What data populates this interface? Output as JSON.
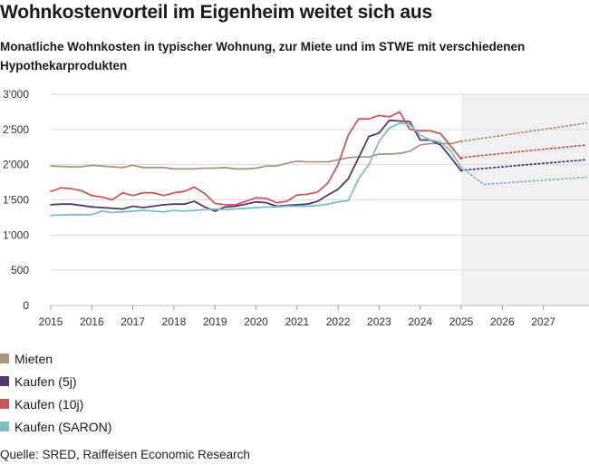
{
  "title": "Wohnkostenvorteil im Eigenheim weitet sich aus",
  "subtitle": "Monatliche Wohnkosten in typischer Wohnung, zur Miete und im STWE mit verschiedenen Hypothekarprodukten",
  "source": "Quelle: SRED, Raiffeisen Economic Research",
  "chart_data": {
    "type": "line",
    "xlim": [
      2015,
      2028.05
    ],
    "ylim": [
      0,
      3000
    ],
    "yticks": [
      0,
      500,
      1000,
      1500,
      2000,
      2500,
      3000
    ],
    "ytick_labels": [
      "0",
      "500",
      "1'000",
      "1'500",
      "2'000",
      "2'500",
      "3'000"
    ],
    "xticks": [
      "2015",
      "2016",
      "2017",
      "2018",
      "2019",
      "2020",
      "2021",
      "2022",
      "2023",
      "2024",
      "2025",
      "2026",
      "2027"
    ],
    "forecast_start": 2025,
    "grid": true,
    "legend_position": "bottom-left",
    "series": [
      {
        "name": "Mieten",
        "color": "#a89680",
        "x": [
          2015,
          2015.5,
          2015.75,
          2016,
          2016.25,
          2016.5,
          2016.75,
          2017,
          2017.25,
          2017.5,
          2017.75,
          2018,
          2018.25,
          2018.5,
          2018.75,
          2019,
          2019.25,
          2019.5,
          2019.75,
          2020,
          2020.25,
          2020.5,
          2020.75,
          2021,
          2021.25,
          2021.5,
          2021.75,
          2022,
          2022.25,
          2022.5,
          2022.75,
          2023,
          2023.25,
          2023.5,
          2023.75,
          2024,
          2024.25,
          2024.5,
          2024.75,
          2025
        ],
        "y": [
          1980,
          1970,
          1970,
          1990,
          1980,
          1970,
          1960,
          1990,
          1960,
          1960,
          1960,
          1940,
          1940,
          1940,
          1950,
          1950,
          1960,
          1940,
          1940,
          1950,
          1980,
          1980,
          2020,
          2050,
          2040,
          2040,
          2040,
          2070,
          2100,
          2110,
          2110,
          2150,
          2150,
          2160,
          2190,
          2280,
          2300,
          2300,
          2300,
          2330
        ],
        "forecast_x": [
          2025,
          2028.05
        ],
        "forecast_y": [
          2330,
          2590
        ]
      },
      {
        "name": "Kaufen (5j)",
        "color": "#4e3a6e",
        "x": [
          2015,
          2015.25,
          2015.5,
          2015.75,
          2016,
          2016.25,
          2016.5,
          2016.75,
          2017,
          2017.25,
          2017.5,
          2017.75,
          2018,
          2018.25,
          2018.5,
          2018.75,
          2019,
          2019.25,
          2019.5,
          2019.75,
          2020,
          2020.25,
          2020.5,
          2020.75,
          2021,
          2021.25,
          2021.5,
          2021.75,
          2022,
          2022.25,
          2022.5,
          2022.75,
          2023,
          2023.25,
          2023.5,
          2023.75,
          2024,
          2024.25,
          2024.5,
          2024.75,
          2025
        ],
        "y": [
          1430,
          1440,
          1440,
          1420,
          1400,
          1390,
          1380,
          1370,
          1410,
          1390,
          1410,
          1430,
          1440,
          1440,
          1480,
          1400,
          1340,
          1400,
          1410,
          1440,
          1470,
          1460,
          1410,
          1420,
          1430,
          1440,
          1480,
          1570,
          1650,
          1800,
          2100,
          2400,
          2450,
          2630,
          2620,
          2610,
          2350,
          2350,
          2280,
          2100,
          1910
        ],
        "forecast_x": [
          2025,
          2028.05
        ],
        "forecast_y": [
          1920,
          2070
        ]
      },
      {
        "name": "Kaufen (10j)",
        "color": "#c95a5a",
        "x": [
          2015,
          2015.25,
          2015.5,
          2015.75,
          2016,
          2016.25,
          2016.5,
          2016.75,
          2017,
          2017.25,
          2017.5,
          2017.75,
          2018,
          2018.25,
          2018.5,
          2018.75,
          2019,
          2019.25,
          2019.5,
          2019.75,
          2020,
          2020.25,
          2020.5,
          2020.75,
          2021,
          2021.25,
          2021.5,
          2021.75,
          2022,
          2022.25,
          2022.5,
          2022.75,
          2023,
          2023.25,
          2023.5,
          2023.75,
          2024,
          2024.25,
          2024.5,
          2024.75,
          2025
        ],
        "y": [
          1620,
          1670,
          1660,
          1630,
          1560,
          1540,
          1500,
          1600,
          1560,
          1600,
          1600,
          1560,
          1600,
          1620,
          1680,
          1590,
          1450,
          1430,
          1430,
          1480,
          1530,
          1520,
          1460,
          1480,
          1570,
          1580,
          1610,
          1740,
          2000,
          2420,
          2650,
          2650,
          2700,
          2680,
          2750,
          2500,
          2480,
          2480,
          2440,
          2260,
          2080
        ],
        "forecast_x": [
          2025,
          2028.05
        ],
        "forecast_y": [
          2100,
          2280
        ]
      },
      {
        "name": "Kaufen (SARON)",
        "color": "#7dbfc0",
        "x": [
          2015,
          2015.5,
          2016,
          2016.25,
          2016.5,
          2016.75,
          2017,
          2017.25,
          2017.5,
          2017.75,
          2018,
          2018.25,
          2018.5,
          2018.75,
          2019,
          2019.25,
          2019.5,
          2019.75,
          2020,
          2020.25,
          2020.5,
          2020.75,
          2021,
          2021.25,
          2021.5,
          2021.75,
          2022,
          2022.25,
          2022.5,
          2022.75,
          2023,
          2023.25,
          2023.5,
          2023.75,
          2024,
          2024.25,
          2024.5,
          2024.75,
          2025
        ],
        "y": [
          1280,
          1290,
          1290,
          1340,
          1320,
          1330,
          1340,
          1350,
          1340,
          1330,
          1350,
          1340,
          1350,
          1360,
          1370,
          1360,
          1370,
          1380,
          1390,
          1400,
          1400,
          1410,
          1410,
          1410,
          1420,
          1440,
          1470,
          1490,
          1800,
          2000,
          2330,
          2520,
          2590,
          2570,
          2420,
          2350,
          2320,
          2190,
          1960
        ],
        "forecast_x": [
          2025,
          2025.55,
          2028.05
        ],
        "forecast_y": [
          1960,
          1720,
          1820
        ]
      }
    ]
  }
}
